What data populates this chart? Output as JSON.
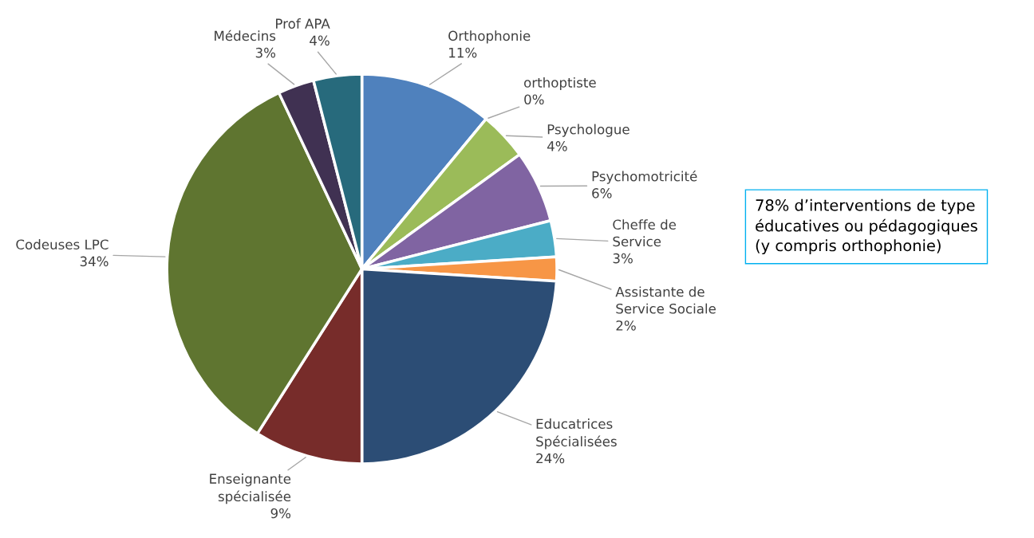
{
  "chart_data": {
    "type": "pie",
    "categories": [
      "Orthophonie",
      "orthoptiste",
      "Psychologue",
      "Psychomotricité",
      "Cheffe de Service",
      "Assistante de Service Sociale",
      "Educatrices Spécialisées",
      "Enseignante spécialisée",
      "Codeuses LPC",
      "Médecins",
      "Prof APA"
    ],
    "values": [
      11,
      0,
      4,
      6,
      3,
      2,
      24,
      9,
      34,
      3,
      4
    ],
    "value_labels": [
      "11%",
      "0%",
      "4%",
      "6%",
      "3%",
      "2%",
      "24%",
      "9%",
      "34%",
      "3%",
      "4%"
    ],
    "colors": [
      "#4f81bd",
      "#c0504d",
      "#9bbb59",
      "#8064a2",
      "#4bacc6",
      "#f79646",
      "#2c4d75",
      "#772c2a",
      "#5f7530",
      "#403152",
      "#276a7c"
    ],
    "annotations": [
      "78% d’interventions de type éducatives ou pédagogiques (y compris orthophonie)"
    ],
    "legend": false
  }
}
